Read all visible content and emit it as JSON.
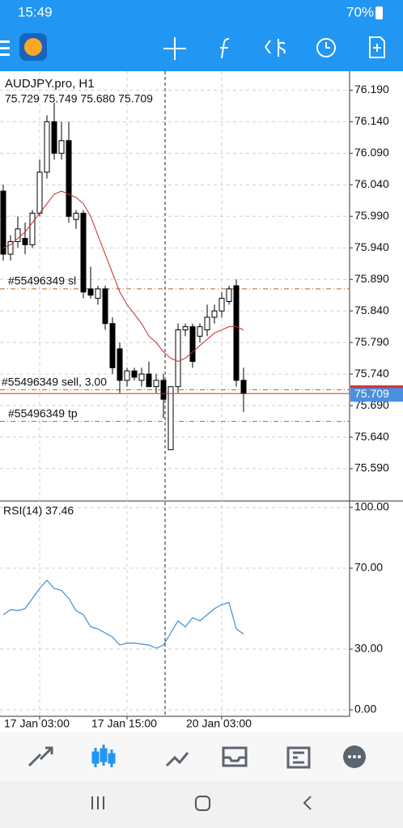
{
  "status_bar": {
    "time": "15:49",
    "battery": "70%"
  },
  "chart_data": {
    "type": "candlestick",
    "title": "AUDJPY.pro, H1",
    "ohlc_text": "75.729 75.749 75.680 75.709",
    "open": [
      76.03,
      75.93,
      75.95,
      75.955,
      75.945,
      75.995,
      76.06,
      76.14,
      76.09,
      76.11,
      75.985,
      75.995,
      75.875,
      75.86,
      75.875,
      75.82,
      75.78,
      75.73,
      75.745,
      75.73,
      75.74,
      75.72,
      75.73,
      75.62,
      75.72,
      75.81,
      75.815,
      75.8,
      75.81,
      75.83,
      75.84,
      75.855,
      75.88,
      75.73
    ],
    "high": [
      76.04,
      75.96,
      75.99,
      75.98,
      76.0,
      76.08,
      76.15,
      76.17,
      76.14,
      76.14,
      76.0,
      76.0,
      75.91,
      75.88,
      75.88,
      75.83,
      75.79,
      75.75,
      75.75,
      75.75,
      75.76,
      75.74,
      75.74,
      75.72,
      75.82,
      75.82,
      75.82,
      75.82,
      75.85,
      75.85,
      75.87,
      75.88,
      75.89,
      75.75
    ],
    "low": [
      75.92,
      75.92,
      75.94,
      75.93,
      75.94,
      75.99,
      76.05,
      76.08,
      76.08,
      75.98,
      75.97,
      75.86,
      75.86,
      75.85,
      75.81,
      75.74,
      75.71,
      75.72,
      75.73,
      75.72,
      75.72,
      75.71,
      75.67,
      75.62,
      75.71,
      75.8,
      75.75,
      75.79,
      75.8,
      75.82,
      75.83,
      75.85,
      75.72,
      75.68
    ],
    "close": [
      75.93,
      75.95,
      75.97,
      75.945,
      75.995,
      76.06,
      76.14,
      76.09,
      76.11,
      75.99,
      75.995,
      75.87,
      75.865,
      75.875,
      75.82,
      75.75,
      75.73,
      75.745,
      75.735,
      75.74,
      75.72,
      75.73,
      75.7,
      75.72,
      75.81,
      75.815,
      75.76,
      75.815,
      75.83,
      75.84,
      75.86,
      75.875,
      75.73,
      75.709
    ],
    "ma": {
      "color": "#c62828",
      "values": [
        75.94,
        75.945,
        75.955,
        75.965,
        75.98,
        75.995,
        76.01,
        76.025,
        76.03,
        76.025,
        76.02,
        76.01,
        75.99,
        75.96,
        75.93,
        75.9,
        75.87,
        75.85,
        75.835,
        75.82,
        75.8,
        75.79,
        75.775,
        75.765,
        75.76,
        75.765,
        75.775,
        75.785,
        75.795,
        75.805,
        75.81,
        75.815,
        75.815,
        75.81
      ]
    },
    "ylim": [
      75.54,
      76.22
    ],
    "yticks": [
      {
        "value": 76.19,
        "label": "76.190"
      },
      {
        "value": 76.14,
        "label": "76.140"
      },
      {
        "value": 76.09,
        "label": "76.090"
      },
      {
        "value": 76.04,
        "label": "76.040"
      },
      {
        "value": 75.99,
        "label": "75.990"
      },
      {
        "value": 75.94,
        "label": "75.940"
      },
      {
        "value": 75.89,
        "label": "75.890"
      },
      {
        "value": 75.84,
        "label": "75.840"
      },
      {
        "value": 75.79,
        "label": "75.790"
      },
      {
        "value": 75.74,
        "label": "75.740"
      },
      {
        "value": 75.69,
        "label": "75.690"
      },
      {
        "value": 75.64,
        "label": "75.640"
      },
      {
        "value": 75.59,
        "label": "75.590"
      }
    ],
    "xticks": [
      {
        "value": 5,
        "label": "17 Jan 03:00"
      },
      {
        "value": 17,
        "label": "17 Jan 15:00"
      },
      {
        "value": 30,
        "label": "20 Jan 03:00"
      }
    ],
    "orders": [
      {
        "label": "#55496349 sl",
        "price": 75.875
      },
      {
        "label": "#55496349 sell, 3.00",
        "price": 75.715
      },
      {
        "label": "#55496349 tp",
        "price": 75.665
      }
    ],
    "price": 75.709,
    "grid": true,
    "rsi": {
      "title": "RSI(14) 37.46",
      "color": "#3a8fd6",
      "values": [
        47,
        49.5,
        49,
        50,
        55,
        60,
        64,
        60,
        59,
        55,
        49,
        47,
        41,
        40,
        38,
        36,
        32,
        33,
        33,
        32.5,
        32,
        30.5,
        32,
        38,
        44,
        41,
        45.5,
        44,
        47,
        50,
        52,
        53,
        40,
        37.46
      ],
      "ylim": [
        -3.2,
        102.8
      ],
      "yticks": [
        {
          "value": 100,
          "label": "100.00"
        },
        {
          "value": 70,
          "label": "70.00"
        },
        {
          "value": 30,
          "label": "30.00"
        },
        {
          "value": 0,
          "label": "0.00"
        }
      ]
    }
  }
}
